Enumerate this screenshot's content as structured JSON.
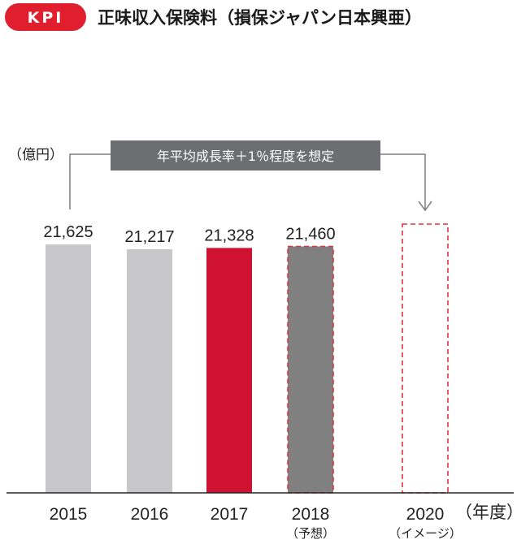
{
  "kpi_badge": "KPI",
  "chart_data": {
    "type": "bar",
    "title": "正味収入保険料（損保ジャパン日本興亜）",
    "ylabel": "（億円）",
    "xlabel": "（年度）",
    "ylim": [
      0,
      28000
    ],
    "annotation": "年平均成長率＋1％程度を想定",
    "categories": [
      "2015",
      "2016",
      "2017",
      "2018",
      "2020"
    ],
    "sublabels": [
      "",
      "",
      "",
      "（予想）",
      "（イメージ）"
    ],
    "values": [
      21625,
      21217,
      21328,
      21460,
      null
    ],
    "value_labels": [
      "21,625",
      "21,217",
      "21,328",
      "21,460",
      ""
    ],
    "bar_styles": [
      "actual",
      "actual",
      "highlight",
      "forecast",
      "image"
    ],
    "colors": {
      "kpi": "#e01e2e",
      "actual": "#c8c8ca",
      "highlight": "#cf1231",
      "forecast": "#808080",
      "dash": "#e0323f",
      "annotation_box": "#6d6e71",
      "line": "#7d7d7d",
      "axis": "#222222"
    }
  }
}
